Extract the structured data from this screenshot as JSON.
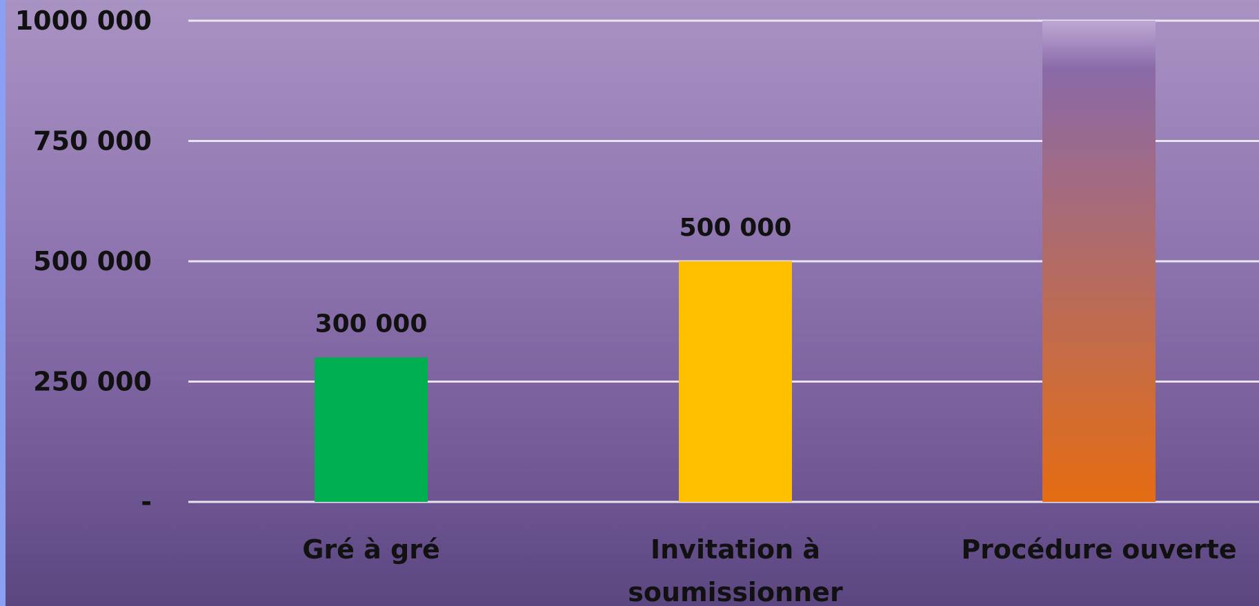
{
  "chart_data": {
    "type": "bar",
    "categories": [
      "Gré à gré",
      "Invitation à soumissionner",
      "Procédure ouverte"
    ],
    "category_lines": [
      [
        "Gré à gré"
      ],
      [
        "Invitation à",
        "soumissionner"
      ],
      [
        "Procédure ouverte"
      ]
    ],
    "values": [
      300000,
      500000,
      1000000
    ],
    "data_labels": [
      "300 000",
      "500 000",
      ""
    ],
    "ylim": [
      0,
      1000000
    ],
    "yticks": [
      {
        "value": 0,
        "label": "-"
      },
      {
        "value": 250000,
        "label": "250 000"
      },
      {
        "value": 500000,
        "label": "500 000"
      },
      {
        "value": 750000,
        "label": "750 000"
      },
      {
        "value": 1000000,
        "label": "1000 000"
      }
    ],
    "grid": true,
    "colors": {
      "bar_1": "#00b050",
      "bar_2": "#ffc000",
      "bar_3_top": "#8a6aa8",
      "bar_3_bottom": "#e56c12",
      "gridline": "#e9e4ef",
      "text": "#111111"
    }
  }
}
